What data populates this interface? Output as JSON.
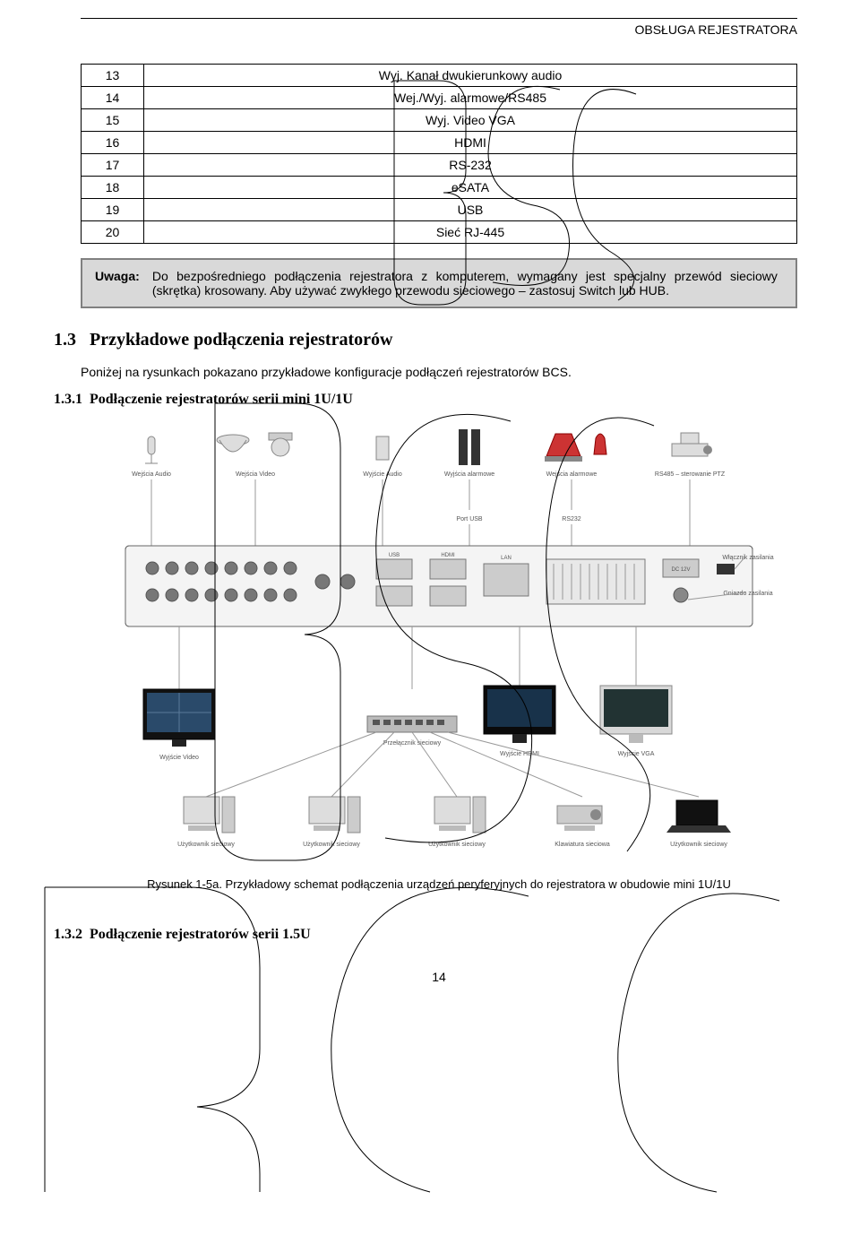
{
  "header": {
    "title": "OBSŁUGA REJESTRATORA"
  },
  "table": {
    "rows": [
      {
        "n": "13",
        "d": "Wyj. Kanał dwukierunkowy audio"
      },
      {
        "n": "14",
        "d": "Wej./Wyj. alarmowe/RS485"
      },
      {
        "n": "15",
        "d": "Wyj. Video VGA"
      },
      {
        "n": "16",
        "d": "HDMI"
      },
      {
        "n": "17",
        "d": "RS-232"
      },
      {
        "n": "18",
        "d": "eSATA"
      },
      {
        "n": "19",
        "d": "USB"
      },
      {
        "n": "20",
        "d": "Sieć RJ-445"
      }
    ]
  },
  "note": {
    "label": "Uwaga:",
    "text": "Do bezpośredniego podłączenia rejestratora z komputerem, wymagany jest specjalny przewód sieciowy (skrętka) krosowany. Aby używać zwykłego przewodu sieciowego – zastosuj Switch lub HUB."
  },
  "sec": {
    "num": "1.3",
    "title": "Przykładowe podłączenia rejestratorów"
  },
  "para": "Poniżej na rysunkach pokazano przykładowe konfiguracje podłączeń rejestratorów BCS.",
  "subsec": {
    "num": "1.3.1",
    "title": "Podłączenie rejestratorów serii mini 1U/1U"
  },
  "diagram": {
    "top_labels": [
      "Wejścia Audio",
      "Wejścia Video",
      "Wyjście Audio",
      "Wyjścia alarmowe",
      "Wejścia alarmowe",
      "RS485 – sterowanie PTZ"
    ],
    "mid_labels": [
      "Port USB",
      "RS232"
    ],
    "side_labels_left": "Wyjście Video",
    "side_labels_right_top": "Włącznik zasilania",
    "side_labels_right_bot": "Gniazdo zasilania",
    "bottom_center_labels": [
      "Przełącznik sieciowy",
      "Wyjście HDMI",
      "Wyjście VGA"
    ],
    "bottom_users": [
      "Użytkownik sieciowy",
      "Użytkownik sieciowy",
      "Użytkownik sieciowy",
      "Klawiatura sieciowa",
      "Użytkownik sieciowy"
    ]
  },
  "caption": "Rysunek 1-5a. Przykładowy schemat podłączenia urządzeń peryferyjnych do rejestratora w obudowie mini 1U/1U",
  "subsec2": {
    "num": "1.3.2",
    "title": "Podłączenie rejestratorów serii 1.5U"
  },
  "pagenum": "14"
}
